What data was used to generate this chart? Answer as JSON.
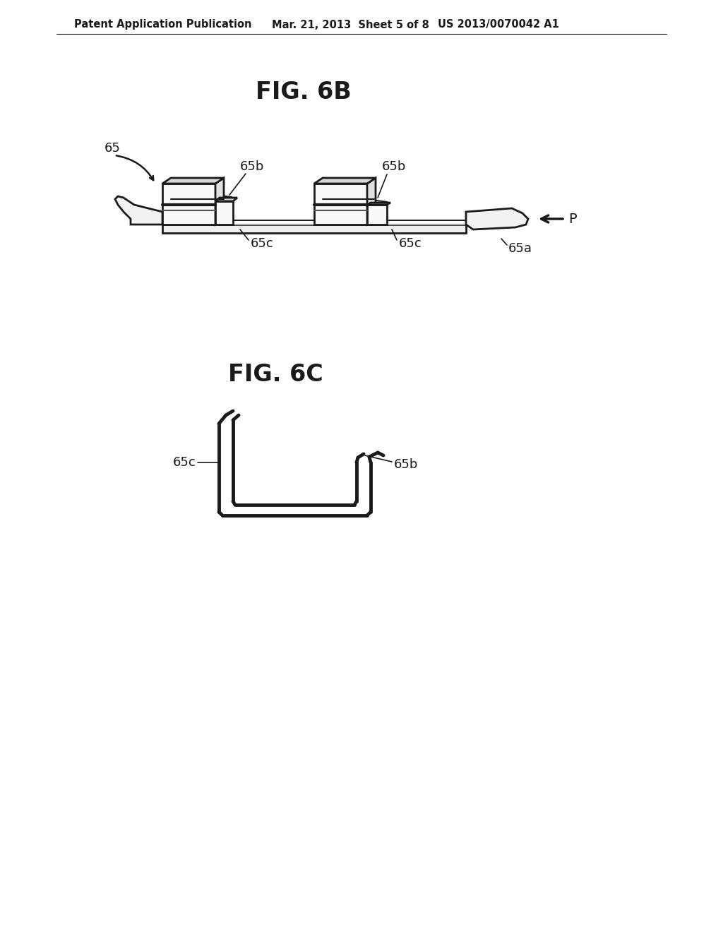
{
  "background_color": "#ffffff",
  "header_text1": "Patent Application Publication",
  "header_text2": "Mar. 21, 2013  Sheet 5 of 8",
  "header_text3": "US 2013/0070042 A1",
  "fig6b_title": "FIG. 6B",
  "fig6c_title": "FIG. 6C",
  "label_65": "65",
  "label_65a": "65a",
  "label_65b1": "65b",
  "label_65b2": "65b",
  "label_65c1": "65c",
  "label_65c2": "65c",
  "label_65c_6c": "65c",
  "label_65b_6c": "65b",
  "label_P": "P",
  "line_color": "#1a1a1a",
  "line_width": 2.0,
  "title_fontsize": 24,
  "header_fontsize": 10.5,
  "label_fontsize": 13
}
